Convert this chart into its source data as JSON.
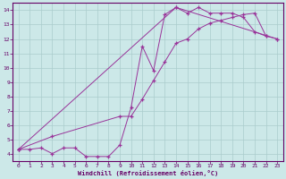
{
  "xlabel": "Windchill (Refroidissement éolien,°C)",
  "bg_color": "#cce8e8",
  "grid_color": "#b0c8c8",
  "line_color": "#993399",
  "xlim": [
    -0.5,
    23.5
  ],
  "ylim": [
    3.5,
    14.5
  ],
  "yticks": [
    4,
    5,
    6,
    7,
    8,
    9,
    10,
    11,
    12,
    13,
    14
  ],
  "xticks": [
    0,
    1,
    2,
    3,
    4,
    5,
    6,
    7,
    8,
    9,
    10,
    11,
    12,
    13,
    14,
    15,
    16,
    17,
    18,
    19,
    20,
    21,
    22,
    23
  ],
  "series": [
    {
      "x": [
        0,
        1,
        2,
        3,
        4,
        5,
        6,
        7,
        8,
        9,
        10,
        11,
        12,
        13,
        14,
        15,
        16,
        17,
        18,
        19,
        20,
        21,
        22
      ],
      "y": [
        4.3,
        4.3,
        4.4,
        4.0,
        4.4,
        4.4,
        3.8,
        3.8,
        3.8,
        4.6,
        7.2,
        11.5,
        9.8,
        13.7,
        14.2,
        13.8,
        14.2,
        13.8,
        13.8,
        13.8,
        13.5,
        12.5,
        12.2
      ]
    },
    {
      "x": [
        0,
        3,
        9,
        10,
        11,
        12,
        13,
        14,
        15,
        16,
        17,
        18,
        19,
        20,
        21,
        22,
        23
      ],
      "y": [
        4.3,
        5.2,
        6.6,
        6.6,
        7.8,
        9.1,
        10.4,
        11.7,
        12.0,
        12.7,
        13.1,
        13.3,
        13.5,
        13.7,
        13.8,
        12.2,
        12.0
      ]
    },
    {
      "x": [
        0,
        14,
        23
      ],
      "y": [
        4.3,
        14.2,
        12.0
      ]
    }
  ]
}
